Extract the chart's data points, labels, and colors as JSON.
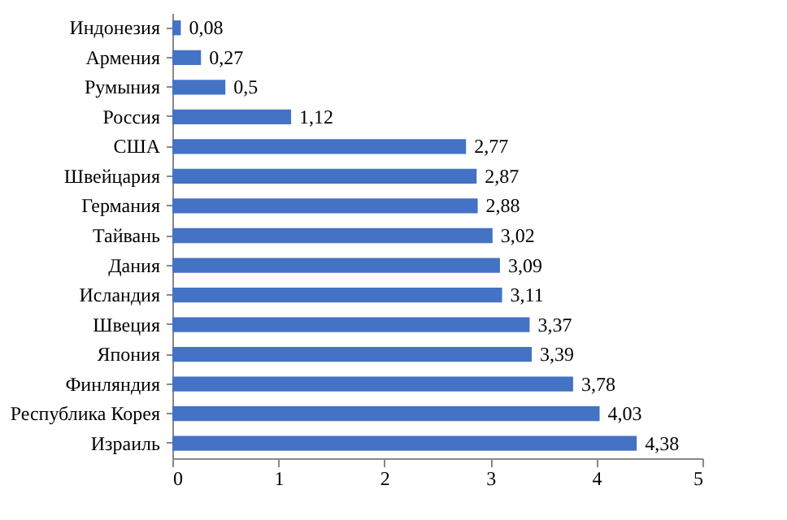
{
  "chart_data": {
    "type": "bar",
    "orientation": "horizontal",
    "categories": [
      "Индонезия",
      "Армения",
      "Румыния",
      "Россия",
      "США",
      "Швейцария",
      "Германия",
      "Тайвань",
      "Дания",
      "Исландия",
      "Швеция",
      "Япония",
      "Финляндия",
      "Республика Корея",
      "Израиль"
    ],
    "values": [
      0.08,
      0.27,
      0.5,
      1.12,
      2.77,
      2.87,
      2.88,
      3.02,
      3.09,
      3.11,
      3.37,
      3.39,
      3.78,
      4.03,
      4.38
    ],
    "value_labels": [
      "0,08",
      "0,27",
      "0,5",
      "1,12",
      "2,77",
      "2,87",
      "2,88",
      "3,02",
      "3,09",
      "3,11",
      "3,37",
      "3,39",
      "3,78",
      "4,03",
      "4,38"
    ],
    "color": "#4472c4",
    "xlim": [
      0,
      5
    ],
    "xticks": [
      0,
      1,
      2,
      3,
      4,
      5
    ],
    "grid": false
  }
}
